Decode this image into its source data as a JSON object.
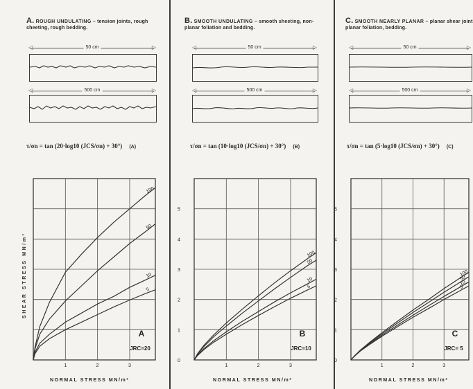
{
  "panels": [
    {
      "id": "A",
      "letter": "A.",
      "name": "ROUGH UNDULATING",
      "description": " – tension joints, rough sheeting, rough bedding.",
      "short_scale": "50 cm",
      "long_scale": "500 cm",
      "equation": "τ/σn = tan (20·log10 (JCS/σn) + 30°)",
      "equation_tag": "(A)",
      "chart_letter": "A",
      "jrc_label": "JRC=20"
    },
    {
      "id": "B",
      "letter": "B.",
      "name": "SMOOTH UNDULATING",
      "description": " – smooth sheeting, non-planar foliation and bedding.",
      "short_scale": "50 cm",
      "long_scale": "500 cm",
      "equation": "τ/σn = tan (10·log10 (JCS/σn) + 30°)",
      "equation_tag": "(B)",
      "chart_letter": "B",
      "jrc_label": "JRC=10"
    },
    {
      "id": "C",
      "letter": "C.",
      "name": "SMOOTH NEARLY PLANAR",
      "description": " – planar shear joints, planar foliation, bedding.",
      "short_scale": "50 cm",
      "long_scale": "500 cm",
      "equation": "τ/σn = tan (5·log10 (JCS/σn) + 30°)",
      "equation_tag": "(C)",
      "chart_letter": "C",
      "jrc_label": "JRC= 5"
    }
  ],
  "axes": {
    "ylabel": "SHEAR STRESS MN/m²",
    "xlabel": "NORMAL STRESS MN/m²"
  },
  "chart_data": [
    {
      "type": "line",
      "title": "",
      "xlabel": "NORMAL STRESS MN/m²",
      "ylabel": "SHEAR STRESS MN/m²",
      "xlim": [
        0,
        3.8
      ],
      "ylim": [
        0,
        6
      ],
      "x_ticks": [
        "1",
        "2",
        "3"
      ],
      "y_ticks": [],
      "grid": true,
      "series": [
        {
          "name": "100",
          "x": [
            0,
            0.05,
            0.2,
            0.5,
            1,
            1.5,
            2,
            2.5,
            3,
            3.5,
            3.8
          ],
          "y": [
            0,
            0.4,
            1.1,
            1.9,
            2.9,
            3.5,
            4.05,
            4.55,
            5.0,
            5.45,
            5.7
          ]
        },
        {
          "name": "50",
          "x": [
            0,
            0.05,
            0.2,
            0.5,
            1,
            1.5,
            2,
            2.5,
            3,
            3.5,
            3.8
          ],
          "y": [
            0,
            0.35,
            0.85,
            1.35,
            1.95,
            2.45,
            2.95,
            3.4,
            3.85,
            4.25,
            4.5
          ]
        },
        {
          "name": "10",
          "x": [
            0,
            0.05,
            0.2,
            0.5,
            1,
            1.5,
            2,
            2.5,
            3,
            3.5,
            3.8
          ],
          "y": [
            0,
            0.25,
            0.55,
            0.85,
            1.25,
            1.55,
            1.85,
            2.1,
            2.4,
            2.65,
            2.8
          ]
        },
        {
          "name": "5",
          "x": [
            0,
            0.05,
            0.2,
            0.5,
            1,
            1.5,
            2,
            2.5,
            3,
            3.5,
            3.8
          ],
          "y": [
            0,
            0.2,
            0.45,
            0.7,
            1.0,
            1.25,
            1.5,
            1.75,
            1.98,
            2.2,
            2.32
          ]
        }
      ]
    },
    {
      "type": "line",
      "title": "",
      "xlabel": "NORMAL STRESS MN/m²",
      "ylabel": "",
      "xlim": [
        0,
        3.8
      ],
      "ylim": [
        0,
        6
      ],
      "x_ticks": [
        "1",
        "2",
        "3"
      ],
      "y_ticks": [
        "0",
        "1",
        "2",
        "3",
        "4",
        "5"
      ],
      "grid": true,
      "series": [
        {
          "name": "100",
          "x": [
            0,
            0.1,
            0.3,
            0.6,
            1,
            1.5,
            2,
            2.5,
            3,
            3.5,
            3.8
          ],
          "y": [
            0,
            0.2,
            0.48,
            0.82,
            1.22,
            1.68,
            2.12,
            2.55,
            2.95,
            3.33,
            3.55
          ]
        },
        {
          "name": "50",
          "x": [
            0,
            0.1,
            0.3,
            0.6,
            1,
            1.5,
            2,
            2.5,
            3,
            3.5,
            3.8
          ],
          "y": [
            0,
            0.18,
            0.44,
            0.76,
            1.12,
            1.55,
            1.95,
            2.35,
            2.73,
            3.1,
            3.3
          ]
        },
        {
          "name": "10",
          "x": [
            0,
            0.1,
            0.3,
            0.6,
            1,
            1.5,
            2,
            2.5,
            3,
            3.5,
            3.8
          ],
          "y": [
            0,
            0.15,
            0.37,
            0.63,
            0.93,
            1.28,
            1.6,
            1.92,
            2.22,
            2.5,
            2.67
          ]
        },
        {
          "name": "5",
          "x": [
            0,
            0.1,
            0.3,
            0.6,
            1,
            1.5,
            2,
            2.5,
            3,
            3.5,
            3.8
          ],
          "y": [
            0,
            0.14,
            0.34,
            0.58,
            0.85,
            1.17,
            1.47,
            1.76,
            2.04,
            2.3,
            2.45
          ]
        }
      ]
    },
    {
      "type": "line",
      "title": "",
      "xlabel": "NORMAL STRESS MN/m²",
      "ylabel": "",
      "xlim": [
        0,
        3.8
      ],
      "ylim": [
        0,
        6
      ],
      "x_ticks": [
        "1",
        "2",
        "3"
      ],
      "y_ticks": [
        "0",
        "1",
        "2",
        "3",
        "4",
        "5"
      ],
      "grid": true,
      "series": [
        {
          "name": "100",
          "x": [
            0,
            0.1,
            0.3,
            0.6,
            1,
            1.5,
            2,
            2.5,
            3,
            3.5,
            3.8
          ],
          "y": [
            0,
            0.12,
            0.32,
            0.58,
            0.9,
            1.28,
            1.65,
            2.0,
            2.36,
            2.7,
            2.9
          ]
        },
        {
          "name": "50",
          "x": [
            0,
            0.1,
            0.3,
            0.6,
            1,
            1.5,
            2,
            2.5,
            3,
            3.5,
            3.8
          ],
          "y": [
            0,
            0.12,
            0.31,
            0.56,
            0.86,
            1.22,
            1.57,
            1.9,
            2.24,
            2.56,
            2.75
          ]
        },
        {
          "name": "10",
          "x": [
            0,
            0.1,
            0.3,
            0.6,
            1,
            1.5,
            2,
            2.5,
            3,
            3.5,
            3.8
          ],
          "y": [
            0,
            0.11,
            0.3,
            0.53,
            0.82,
            1.15,
            1.48,
            1.79,
            2.1,
            2.4,
            2.58
          ]
        },
        {
          "name": "5",
          "x": [
            0,
            0.1,
            0.3,
            0.6,
            1,
            1.5,
            2,
            2.5,
            3,
            3.5,
            3.8
          ],
          "y": [
            0,
            0.11,
            0.29,
            0.51,
            0.78,
            1.1,
            1.41,
            1.7,
            2.0,
            2.28,
            2.45
          ]
        }
      ]
    }
  ]
}
